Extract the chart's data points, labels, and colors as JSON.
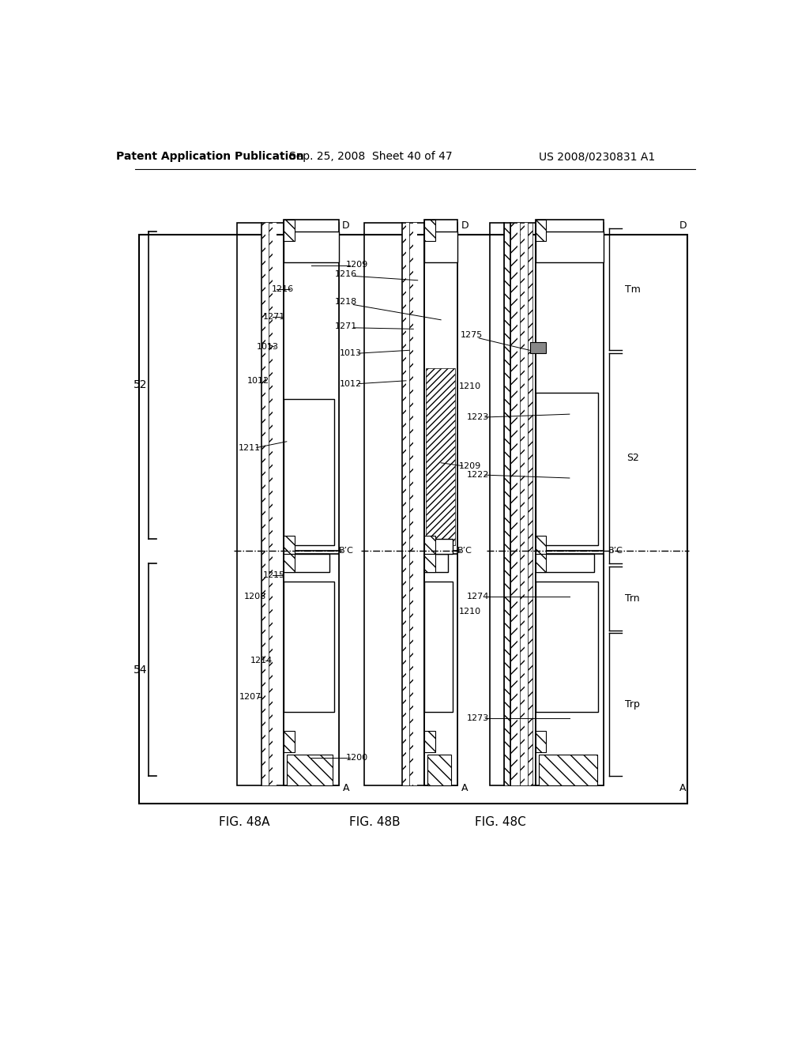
{
  "bg_color": "#ffffff",
  "header_left": "Patent Application Publication",
  "header_mid": "Sep. 25, 2008  Sheet 40 of 47",
  "header_right": "US 2008/0230831 A1",
  "fig_a_label": "FIG. 48A",
  "fig_b_label": "FIG. 48B",
  "fig_c_label": "FIG. 48C",
  "bracket_labels": [
    "52",
    "54"
  ],
  "bc_label": "B’C",
  "labels_48A": [
    "1209",
    "1216",
    "1271",
    "1013",
    "1012",
    "1211",
    "1208",
    "1215",
    "1214",
    "1207",
    "1200"
  ],
  "labels_48B": [
    "1216",
    "1218",
    "1271",
    "1013",
    "1012",
    "1210",
    "1209",
    "1210"
  ],
  "labels_48C": [
    "1275",
    "1223",
    "1222",
    "1274",
    "1273"
  ],
  "side_labels": [
    "Tm",
    "S2",
    "Trn",
    "Trp"
  ],
  "axis_labels": [
    "D",
    "B’C",
    "A"
  ]
}
